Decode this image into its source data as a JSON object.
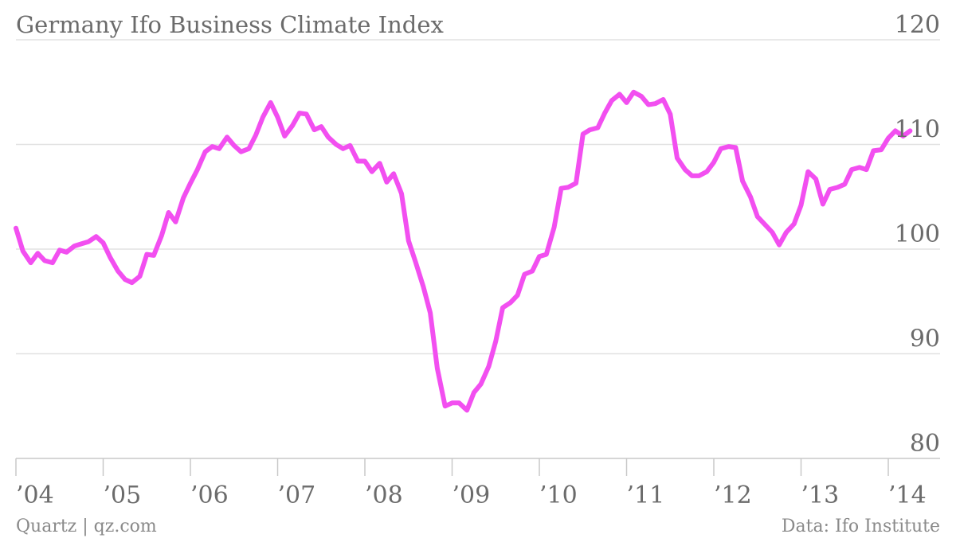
{
  "chart_data": {
    "type": "line",
    "title": "Germany Ifo Business Climate Index",
    "xlabel": "",
    "ylabel": "",
    "ylim": [
      80,
      120
    ],
    "yticks": [
      {
        "value": 120,
        "label": "120"
      },
      {
        "value": 110,
        "label": "110"
      },
      {
        "value": 100,
        "label": "100"
      },
      {
        "value": 90,
        "label": "90"
      },
      {
        "value": 80,
        "label": "80"
      }
    ],
    "xlim": [
      2004.0,
      2014.5
    ],
    "xticks": [
      {
        "value": 2004,
        "label": "’04"
      },
      {
        "value": 2005,
        "label": "’05"
      },
      {
        "value": 2006,
        "label": "’06"
      },
      {
        "value": 2007,
        "label": "’07"
      },
      {
        "value": 2008,
        "label": "’08"
      },
      {
        "value": 2009,
        "label": "’09"
      },
      {
        "value": 2010,
        "label": "’10"
      },
      {
        "value": 2011,
        "label": "’11"
      },
      {
        "value": 2012,
        "label": "’12"
      },
      {
        "value": 2013,
        "label": "’13"
      },
      {
        "value": 2014,
        "label": "’14"
      }
    ],
    "grid": true,
    "legend": "none",
    "series": [
      {
        "color": "#f24ff0",
        "points": [
          [
            2004.0,
            102.0
          ],
          [
            2004.08,
            99.8
          ],
          [
            2004.17,
            98.7
          ],
          [
            2004.25,
            99.6
          ],
          [
            2004.33,
            98.9
          ],
          [
            2004.42,
            98.7
          ],
          [
            2004.5,
            99.9
          ],
          [
            2004.58,
            99.7
          ],
          [
            2004.67,
            100.3
          ],
          [
            2004.75,
            100.5
          ],
          [
            2004.83,
            100.7
          ],
          [
            2004.92,
            101.2
          ],
          [
            2005.0,
            100.6
          ],
          [
            2005.08,
            99.2
          ],
          [
            2005.17,
            97.9
          ],
          [
            2005.25,
            97.1
          ],
          [
            2005.33,
            96.8
          ],
          [
            2005.42,
            97.4
          ],
          [
            2005.5,
            99.5
          ],
          [
            2005.58,
            99.4
          ],
          [
            2005.67,
            101.3
          ],
          [
            2005.75,
            103.5
          ],
          [
            2005.83,
            102.6
          ],
          [
            2005.92,
            104.9
          ],
          [
            2006.0,
            106.3
          ],
          [
            2006.08,
            107.6
          ],
          [
            2006.17,
            109.3
          ],
          [
            2006.25,
            109.8
          ],
          [
            2006.33,
            109.6
          ],
          [
            2006.42,
            110.7
          ],
          [
            2006.5,
            109.9
          ],
          [
            2006.58,
            109.3
          ],
          [
            2006.67,
            109.6
          ],
          [
            2006.75,
            110.9
          ],
          [
            2006.83,
            112.6
          ],
          [
            2006.92,
            114.0
          ],
          [
            2007.0,
            112.6
          ],
          [
            2007.08,
            110.8
          ],
          [
            2007.17,
            111.8
          ],
          [
            2007.25,
            113.0
          ],
          [
            2007.33,
            112.9
          ],
          [
            2007.42,
            111.4
          ],
          [
            2007.5,
            111.7
          ],
          [
            2007.58,
            110.7
          ],
          [
            2007.67,
            110.0
          ],
          [
            2007.75,
            109.6
          ],
          [
            2007.83,
            109.9
          ],
          [
            2007.92,
            108.4
          ],
          [
            2008.0,
            108.4
          ],
          [
            2008.08,
            107.4
          ],
          [
            2008.17,
            108.2
          ],
          [
            2008.25,
            106.4
          ],
          [
            2008.33,
            107.2
          ],
          [
            2008.42,
            105.3
          ],
          [
            2008.5,
            100.8
          ],
          [
            2008.58,
            98.8
          ],
          [
            2008.67,
            96.4
          ],
          [
            2008.75,
            93.9
          ],
          [
            2008.83,
            88.6
          ],
          [
            2008.92,
            85.0
          ],
          [
            2009.0,
            85.3
          ],
          [
            2009.08,
            85.3
          ],
          [
            2009.17,
            84.6
          ],
          [
            2009.25,
            86.3
          ],
          [
            2009.33,
            87.1
          ],
          [
            2009.42,
            88.8
          ],
          [
            2009.5,
            91.2
          ],
          [
            2009.58,
            94.4
          ],
          [
            2009.67,
            94.9
          ],
          [
            2009.75,
            95.6
          ],
          [
            2009.83,
            97.6
          ],
          [
            2009.92,
            97.9
          ],
          [
            2010.0,
            99.3
          ],
          [
            2010.08,
            99.5
          ],
          [
            2010.17,
            102.1
          ],
          [
            2010.25,
            105.8
          ],
          [
            2010.33,
            105.9
          ],
          [
            2010.42,
            106.3
          ],
          [
            2010.5,
            111.0
          ],
          [
            2010.58,
            111.4
          ],
          [
            2010.67,
            111.6
          ],
          [
            2010.75,
            113.0
          ],
          [
            2010.83,
            114.2
          ],
          [
            2010.92,
            114.8
          ],
          [
            2011.0,
            114.0
          ],
          [
            2011.08,
            115.0
          ],
          [
            2011.17,
            114.6
          ],
          [
            2011.25,
            113.8
          ],
          [
            2011.33,
            113.9
          ],
          [
            2011.42,
            114.3
          ],
          [
            2011.5,
            112.9
          ],
          [
            2011.58,
            108.7
          ],
          [
            2011.67,
            107.6
          ],
          [
            2011.75,
            107.0
          ],
          [
            2011.83,
            107.0
          ],
          [
            2011.92,
            107.4
          ],
          [
            2012.0,
            108.3
          ],
          [
            2012.08,
            109.6
          ],
          [
            2012.17,
            109.8
          ],
          [
            2012.25,
            109.7
          ],
          [
            2012.33,
            106.5
          ],
          [
            2012.42,
            105.0
          ],
          [
            2012.5,
            103.1
          ],
          [
            2012.58,
            102.4
          ],
          [
            2012.67,
            101.6
          ],
          [
            2012.75,
            100.4
          ],
          [
            2012.83,
            101.6
          ],
          [
            2012.92,
            102.4
          ],
          [
            2013.0,
            104.2
          ],
          [
            2013.08,
            107.4
          ],
          [
            2013.17,
            106.7
          ],
          [
            2013.25,
            104.3
          ],
          [
            2013.33,
            105.7
          ],
          [
            2013.42,
            105.9
          ],
          [
            2013.5,
            106.2
          ],
          [
            2013.58,
            107.6
          ],
          [
            2013.67,
            107.8
          ],
          [
            2013.75,
            107.6
          ],
          [
            2013.83,
            109.4
          ],
          [
            2013.92,
            109.5
          ],
          [
            2014.0,
            110.6
          ],
          [
            2014.08,
            111.3
          ],
          [
            2014.17,
            110.8
          ],
          [
            2014.25,
            111.3
          ]
        ]
      }
    ]
  },
  "footer": {
    "source_left": "Quartz | qz.com",
    "source_right": "Data: Ifo Institute"
  },
  "colors": {
    "line": "#f24ff0",
    "grid": "#e2e2e2",
    "text": "#6b6b6b"
  }
}
